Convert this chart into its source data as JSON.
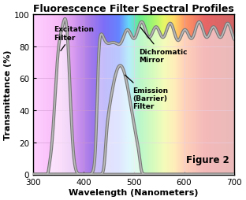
{
  "title": "Fluorescence Filter Spectral Profiles",
  "xlabel": "Wavelength (Nanometers)",
  "ylabel": "Transmittance (%)",
  "xlim": [
    300,
    700
  ],
  "ylim": [
    0,
    100
  ],
  "xticks": [
    300,
    400,
    500,
    600,
    700
  ],
  "yticks": [
    0,
    20,
    40,
    60,
    80,
    100
  ],
  "figure2_text": "Figure 2",
  "bg_colors": {
    "wls": [
      300,
      350,
      380,
      410,
      440,
      470,
      490,
      510,
      540,
      560,
      580,
      600,
      640,
      700
    ],
    "rs": [
      1.0,
      0.95,
      0.75,
      0.45,
      0.15,
      0.0,
      0.0,
      0.0,
      0.45,
      0.85,
      1.0,
      1.0,
      0.85,
      0.7
    ],
    "gs": [
      0.7,
      0.55,
      0.35,
      0.15,
      0.05,
      0.2,
      0.75,
      0.88,
      0.95,
      0.95,
      0.75,
      0.35,
      0.0,
      0.0
    ],
    "bs": [
      1.0,
      0.95,
      0.9,
      0.85,
      0.95,
      1.0,
      0.95,
      0.25,
      0.05,
      0.0,
      0.0,
      0.0,
      0.0,
      0.0
    ]
  },
  "grid_color": "#cc99cc",
  "outer_line_color": "#777777",
  "inner_line_color": "#bbbbbb",
  "outer_lw": 2.8,
  "inner_lw": 1.2,
  "fill_color": "white",
  "fill_alpha": 0.55
}
